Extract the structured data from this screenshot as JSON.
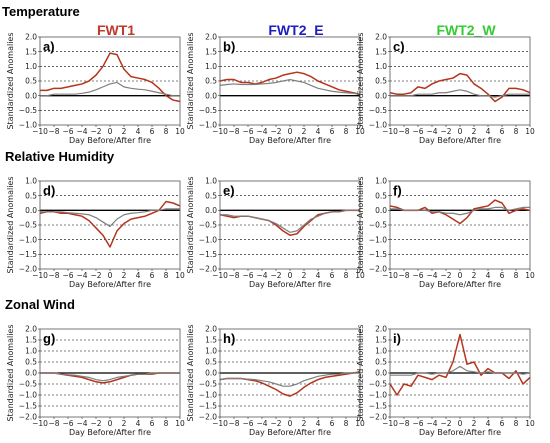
{
  "figure": {
    "row_titles": [
      "Temperature",
      "Relative Humidity",
      "Zonal Wind"
    ],
    "column_titles": [
      "FWT1",
      "FWT2_E",
      "FWT2_W"
    ],
    "column_title_colors": [
      "#c0392b",
      "#1f1fbf",
      "#33cc33"
    ],
    "series_colors": {
      "primary": "#b5341c",
      "secondary": "#7f7f7f",
      "zero_line": "#000000",
      "grid": "#000000",
      "shade": "#f2b8b8"
    }
  },
  "chart_data": [
    {
      "type": "line",
      "panel": "a)",
      "row": 0,
      "col": 0,
      "x": [
        -10,
        -9,
        -8,
        -7,
        -6,
        -5,
        -4,
        -3,
        -2,
        -1,
        0,
        1,
        2,
        3,
        4,
        5,
        6,
        7,
        8,
        9,
        10
      ],
      "series": [
        {
          "values": [
            0.18,
            0.18,
            0.25,
            0.25,
            0.3,
            0.35,
            0.4,
            0.5,
            0.7,
            1.0,
            1.45,
            1.4,
            0.9,
            0.65,
            0.6,
            0.55,
            0.45,
            0.25,
            0.0,
            -0.15,
            -0.2
          ]
        },
        {
          "values": [
            0.0,
            0.0,
            0.05,
            0.05,
            0.05,
            0.05,
            0.08,
            0.12,
            0.2,
            0.3,
            0.4,
            0.45,
            0.3,
            0.25,
            0.22,
            0.2,
            0.15,
            0.1,
            0.05,
            0.0,
            0.0
          ]
        }
      ],
      "xlabel": "Day Before/After fire",
      "ylabel": "Standardized Anomalies",
      "xticks": [
        "−10",
        "−8",
        "−6",
        "−4",
        "−2",
        "0",
        "2",
        "4",
        "6",
        "8",
        "10"
      ],
      "yticks": [
        "−1.0",
        "−0.5",
        "0.0",
        "0.5",
        "1.0",
        "1.5",
        "2.0"
      ],
      "xlim": [
        -10,
        10
      ],
      "ylim": [
        -1.0,
        2.0
      ],
      "dashed_grid_y": [
        -0.5,
        0.5,
        1.0,
        1.5
      ]
    },
    {
      "type": "line",
      "panel": "b)",
      "row": 0,
      "col": 1,
      "x": [
        -10,
        -9,
        -8,
        -7,
        -6,
        -5,
        -4,
        -3,
        -2,
        -1,
        0,
        1,
        2,
        3,
        4,
        5,
        6,
        7,
        8,
        9,
        10
      ],
      "series": [
        {
          "values": [
            0.5,
            0.55,
            0.55,
            0.45,
            0.45,
            0.4,
            0.45,
            0.55,
            0.6,
            0.7,
            0.75,
            0.8,
            0.75,
            0.65,
            0.5,
            0.4,
            0.3,
            0.2,
            0.15,
            0.1,
            0.05
          ]
        },
        {
          "values": [
            0.35,
            0.38,
            0.4,
            0.38,
            0.38,
            0.38,
            0.4,
            0.42,
            0.45,
            0.5,
            0.55,
            0.5,
            0.45,
            0.35,
            0.25,
            0.2,
            0.15,
            0.12,
            0.1,
            0.08,
            0.05
          ]
        }
      ],
      "xlabel": "Day Before/After fire",
      "ylabel": "Standardized Anomalies",
      "xticks": [
        "−10",
        "−8",
        "−6",
        "−4",
        "−2",
        "0",
        "2",
        "4",
        "6",
        "8",
        "10"
      ],
      "yticks": [
        "−1.0",
        "−0.5",
        "0.0",
        "0.5",
        "1.0",
        "1.5",
        "2.0"
      ],
      "xlim": [
        -10,
        10
      ],
      "ylim": [
        -1.0,
        2.0
      ],
      "dashed_grid_y": [
        -0.5,
        0.5,
        1.0,
        1.5
      ]
    },
    {
      "type": "line",
      "panel": "c)",
      "row": 0,
      "col": 2,
      "x": [
        -10,
        -9,
        -8,
        -7,
        -6,
        -5,
        -4,
        -3,
        -2,
        -1,
        0,
        1,
        2,
        3,
        4,
        5,
        6,
        7,
        8,
        9,
        10
      ],
      "series": [
        {
          "values": [
            0.1,
            0.05,
            0.05,
            0.1,
            0.3,
            0.25,
            0.4,
            0.5,
            0.55,
            0.6,
            0.75,
            0.7,
            0.4,
            0.25,
            0.05,
            -0.2,
            -0.05,
            0.25,
            0.25,
            0.2,
            0.1
          ]
        },
        {
          "values": [
            0.0,
            0.0,
            0.0,
            0.0,
            0.05,
            0.05,
            0.05,
            0.1,
            0.1,
            0.15,
            0.2,
            0.15,
            0.05,
            0.0,
            0.0,
            -0.05,
            0.0,
            0.05,
            0.05,
            0.05,
            0.05
          ]
        }
      ],
      "xlabel": "Day Before/After fire",
      "ylabel": "Standardized Anomalies",
      "xticks": [
        "−10",
        "−8",
        "−6",
        "−4",
        "−2",
        "0",
        "2",
        "4",
        "6",
        "8",
        "10"
      ],
      "yticks": [
        "−1.0",
        "−0.5",
        "0.0",
        "0.5",
        "1.0",
        "1.5",
        "2.0"
      ],
      "xlim": [
        -10,
        10
      ],
      "ylim": [
        -1.0,
        2.0
      ],
      "dashed_grid_y": [
        -0.5,
        0.5,
        1.0,
        1.5
      ]
    },
    {
      "type": "line",
      "panel": "d)",
      "row": 1,
      "col": 0,
      "x": [
        -10,
        -9,
        -8,
        -7,
        -6,
        -5,
        -4,
        -3,
        -2,
        -1,
        0,
        1,
        2,
        3,
        4,
        5,
        6,
        7,
        8,
        9,
        10
      ],
      "series": [
        {
          "values": [
            -0.1,
            -0.05,
            -0.05,
            -0.1,
            -0.1,
            -0.15,
            -0.2,
            -0.35,
            -0.6,
            -0.85,
            -1.25,
            -0.7,
            -0.45,
            -0.3,
            -0.25,
            -0.2,
            -0.1,
            0.0,
            0.3,
            0.25,
            0.15
          ]
        },
        {
          "values": [
            -0.05,
            -0.05,
            -0.05,
            -0.05,
            -0.08,
            -0.1,
            -0.12,
            -0.15,
            -0.25,
            -0.4,
            -0.55,
            -0.3,
            -0.15,
            -0.1,
            -0.08,
            -0.05,
            0.0,
            0.0,
            0.05,
            0.05,
            0.05
          ]
        }
      ],
      "xlabel": "Day Before/After fire",
      "ylabel": "Standardized Anomalies",
      "xticks": [
        "−10",
        "−8",
        "−6",
        "−4",
        "−2",
        "0",
        "2",
        "4",
        "6",
        "8",
        "10"
      ],
      "yticks": [
        "−2.0",
        "−1.5",
        "−1.0",
        "−0.5",
        "0.0",
        "0.5",
        "1.0"
      ],
      "xlim": [
        -10,
        10
      ],
      "ylim": [
        -2.0,
        1.0
      ],
      "dashed_grid_y": [
        -1.5,
        -1.0,
        -0.5,
        0.5
      ]
    },
    {
      "type": "line",
      "panel": "e)",
      "row": 1,
      "col": 1,
      "x": [
        -10,
        -9,
        -8,
        -7,
        -6,
        -5,
        -4,
        -3,
        -2,
        -1,
        0,
        1,
        2,
        3,
        4,
        5,
        6,
        7,
        8,
        9,
        10
      ],
      "series": [
        {
          "values": [
            -0.15,
            -0.2,
            -0.25,
            -0.2,
            -0.2,
            -0.25,
            -0.3,
            -0.35,
            -0.5,
            -0.7,
            -0.85,
            -0.8,
            -0.55,
            -0.35,
            -0.15,
            -0.1,
            -0.05,
            -0.05,
            0.0,
            0.0,
            0.0
          ]
        },
        {
          "values": [
            -0.15,
            -0.15,
            -0.2,
            -0.2,
            -0.2,
            -0.25,
            -0.3,
            -0.35,
            -0.45,
            -0.6,
            -0.75,
            -0.7,
            -0.5,
            -0.3,
            -0.2,
            -0.1,
            -0.05,
            -0.05,
            0.0,
            0.0,
            0.0
          ]
        }
      ],
      "xlabel": "Day Before/After fire",
      "ylabel": "Standardized Anomalies",
      "xticks": [
        "−10",
        "−8",
        "−6",
        "−4",
        "−2",
        "0",
        "2",
        "4",
        "6",
        "8",
        "10"
      ],
      "yticks": [
        "−2.0",
        "−1.5",
        "−1.0",
        "−0.5",
        "0.0",
        "0.5",
        "1.0"
      ],
      "xlim": [
        -10,
        10
      ],
      "ylim": [
        -2.0,
        1.0
      ],
      "dashed_grid_y": [
        -1.5,
        -1.0,
        -0.5,
        0.5
      ]
    },
    {
      "type": "line",
      "panel": "f)",
      "row": 1,
      "col": 2,
      "x": [
        -10,
        -9,
        -8,
        -7,
        -6,
        -5,
        -4,
        -3,
        -2,
        -1,
        0,
        1,
        2,
        3,
        4,
        5,
        6,
        7,
        8,
        9,
        10
      ],
      "series": [
        {
          "values": [
            0.15,
            0.1,
            0.0,
            0.0,
            0.0,
            0.1,
            -0.1,
            -0.05,
            -0.15,
            -0.3,
            -0.45,
            -0.25,
            0.05,
            0.1,
            0.15,
            0.35,
            0.25,
            -0.1,
            0.0,
            0.05,
            0.0
          ]
        },
        {
          "values": [
            0.05,
            0.05,
            0.0,
            0.0,
            0.0,
            0.0,
            -0.05,
            -0.05,
            -0.1,
            -0.1,
            -0.15,
            -0.1,
            0.0,
            0.05,
            0.05,
            0.1,
            0.1,
            0.0,
            0.05,
            0.1,
            0.1
          ]
        }
      ],
      "xlabel": "Day Before/After fire",
      "ylabel": "Standardized Anomalies",
      "xticks": [
        "−10",
        "−8",
        "−6",
        "−4",
        "−2",
        "0",
        "2",
        "4",
        "6",
        "8",
        "10"
      ],
      "yticks": [
        "−2.0",
        "−1.5",
        "−1.0",
        "−0.5",
        "0.0",
        "0.5",
        "1.0"
      ],
      "xlim": [
        -10,
        10
      ],
      "ylim": [
        -2.0,
        1.0
      ],
      "dashed_grid_y": [
        -1.5,
        -1.0,
        -0.5,
        0.5
      ]
    },
    {
      "type": "line",
      "panel": "g)",
      "row": 2,
      "col": 0,
      "x": [
        -10,
        -9,
        -8,
        -7,
        -6,
        -5,
        -4,
        -3,
        -2,
        -1,
        0,
        1,
        2,
        3,
        4,
        5,
        6,
        7,
        8,
        9,
        10
      ],
      "series": [
        {
          "values": [
            0.0,
            0.0,
            0.0,
            -0.05,
            -0.1,
            -0.15,
            -0.2,
            -0.3,
            -0.4,
            -0.45,
            -0.4,
            -0.3,
            -0.2,
            -0.1,
            -0.05,
            -0.05,
            -0.05,
            0.0,
            0.0,
            0.0,
            0.0
          ]
        },
        {
          "values": [
            0.0,
            0.0,
            0.0,
            -0.05,
            -0.08,
            -0.1,
            -0.15,
            -0.2,
            -0.3,
            -0.35,
            -0.3,
            -0.2,
            -0.15,
            -0.1,
            -0.05,
            -0.05,
            0.0,
            0.0,
            0.0,
            0.0,
            0.0
          ]
        }
      ],
      "xlabel": "Day Before/After fire",
      "ylabel": "Standardized Anomalies",
      "xticks": [
        "−10",
        "−8",
        "−6",
        "−4",
        "−2",
        "0",
        "2",
        "4",
        "6",
        "8",
        "10"
      ],
      "yticks": [
        "−2.0",
        "−1.5",
        "−1.0",
        "−0.5",
        "0.0",
        "0.5",
        "1.0",
        "1.5",
        "2.0"
      ],
      "xlim": [
        -10,
        10
      ],
      "ylim": [
        -2.0,
        2.0
      ],
      "dashed_grid_y": [
        -1.5,
        -1.0,
        -0.5,
        0.5,
        1.0,
        1.5
      ]
    },
    {
      "type": "line",
      "panel": "h)",
      "row": 2,
      "col": 1,
      "x": [
        -10,
        -9,
        -8,
        -7,
        -6,
        -5,
        -4,
        -3,
        -2,
        -1,
        0,
        1,
        2,
        3,
        4,
        5,
        6,
        7,
        8,
        9,
        10
      ],
      "series": [
        {
          "values": [
            -0.3,
            -0.25,
            -0.25,
            -0.25,
            -0.3,
            -0.35,
            -0.45,
            -0.6,
            -0.75,
            -0.95,
            -1.05,
            -0.9,
            -0.65,
            -0.45,
            -0.3,
            -0.2,
            -0.15,
            -0.1,
            -0.05,
            0.0,
            0.05
          ]
        },
        {
          "values": [
            -0.3,
            -0.25,
            -0.25,
            -0.25,
            -0.28,
            -0.3,
            -0.35,
            -0.4,
            -0.5,
            -0.6,
            -0.6,
            -0.5,
            -0.35,
            -0.25,
            -0.15,
            -0.1,
            -0.05,
            -0.05,
            0.0,
            0.0,
            0.0
          ]
        }
      ],
      "xlabel": "Day Before/After fire",
      "ylabel": "Standardized Anomalies",
      "xticks": [
        "−10",
        "−8",
        "−6",
        "−4",
        "−2",
        "0",
        "2",
        "4",
        "6",
        "8",
        "10"
      ],
      "yticks": [
        "−2.0",
        "−1.5",
        "−1.0",
        "−0.5",
        "0.0",
        "0.5",
        "1.0",
        "1.5",
        "2.0"
      ],
      "xlim": [
        -10,
        10
      ],
      "ylim": [
        -2.0,
        2.0
      ],
      "dashed_grid_y": [
        -1.5,
        -1.0,
        -0.5,
        0.5,
        1.0,
        1.5
      ]
    },
    {
      "type": "line",
      "panel": "i)",
      "row": 2,
      "col": 2,
      "x": [
        -10,
        -9,
        -8,
        -7,
        -6,
        -5,
        -4,
        -3,
        -2,
        -1,
        0,
        1,
        2,
        3,
        4,
        5,
        6,
        7,
        8,
        9,
        10
      ],
      "series": [
        {
          "values": [
            -0.5,
            -1.0,
            -0.5,
            -0.6,
            -0.1,
            -0.2,
            -0.3,
            -0.1,
            -0.2,
            0.5,
            1.75,
            0.4,
            0.5,
            -0.1,
            0.2,
            0.0,
            0.0,
            -0.25,
            0.1,
            -0.5,
            -0.2
          ]
        },
        {
          "values": [
            -0.1,
            -0.1,
            -0.1,
            -0.1,
            0.0,
            0.0,
            -0.05,
            0.0,
            0.0,
            0.1,
            0.3,
            0.1,
            0.05,
            0.0,
            0.05,
            0.0,
            0.0,
            0.0,
            0.0,
            -0.05,
            0.0
          ]
        }
      ],
      "xlabel": "Day Before/After fire",
      "ylabel": "Standardized Anomalies",
      "xticks": [
        "−10",
        "−8",
        "−6",
        "−4",
        "−2",
        "0",
        "2",
        "4",
        "6",
        "8",
        "10"
      ],
      "yticks": [
        "−2.0",
        "−1.5",
        "−1.0",
        "−0.5",
        "0.0",
        "0.5",
        "1.0",
        "1.5",
        "2.0"
      ],
      "xlim": [
        -10,
        10
      ],
      "ylim": [
        -2.0,
        2.0
      ],
      "dashed_grid_y": [
        -1.5,
        -1.0,
        -0.5,
        0.5,
        1.0,
        1.5
      ]
    }
  ]
}
